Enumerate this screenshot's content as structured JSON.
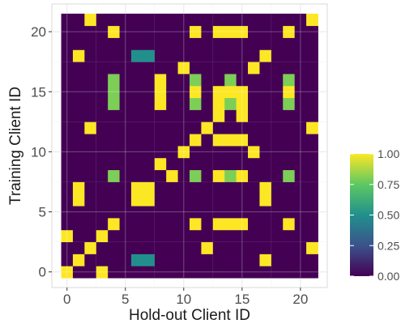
{
  "chart_data": {
    "type": "heatmap",
    "title": "",
    "xlabel": "Hold-out Client ID",
    "ylabel": "Training Client ID",
    "x_range": [
      0,
      21
    ],
    "y_range": [
      0,
      21
    ],
    "xlim": [
      -1.3,
      22.3
    ],
    "ylim": [
      -1.3,
      22.3
    ],
    "x_ticks": [
      0,
      5,
      10,
      15,
      20
    ],
    "y_ticks": [
      0,
      5,
      10,
      15,
      20
    ],
    "x_tick_labels": [
      "0",
      "5",
      "10",
      "15",
      "20"
    ],
    "y_tick_labels": [
      "0",
      "5",
      "10",
      "15",
      "20"
    ],
    "grid": true,
    "colorscale": "viridis",
    "colorbar": {
      "range": [
        0,
        1
      ],
      "ticks": [
        0.0,
        0.25,
        0.5,
        0.75,
        1.0
      ],
      "tick_labels": [
        "0.00",
        "0.25",
        "0.50",
        "0.75",
        "1.00"
      ],
      "placement": "right"
    },
    "default_value": 0,
    "cells": [
      {
        "x": 0,
        "y": 0,
        "value": 1
      },
      {
        "x": 3,
        "y": 0,
        "value": 1
      },
      {
        "x": 1,
        "y": 1,
        "value": 1
      },
      {
        "x": 6,
        "y": 1,
        "value": 0.5
      },
      {
        "x": 7,
        "y": 1,
        "value": 0.5
      },
      {
        "x": 17,
        "y": 1,
        "value": 1
      },
      {
        "x": 2,
        "y": 2,
        "value": 1
      },
      {
        "x": 12,
        "y": 2,
        "value": 1
      },
      {
        "x": 21,
        "y": 2,
        "value": 1
      },
      {
        "x": 0,
        "y": 3,
        "value": 1
      },
      {
        "x": 3,
        "y": 3,
        "value": 1
      },
      {
        "x": 4,
        "y": 4,
        "value": 1
      },
      {
        "x": 11,
        "y": 4,
        "value": 1
      },
      {
        "x": 13,
        "y": 4,
        "value": 1
      },
      {
        "x": 14,
        "y": 4,
        "value": 1
      },
      {
        "x": 15,
        "y": 4,
        "value": 1
      },
      {
        "x": 19,
        "y": 4,
        "value": 1
      },
      {
        "x": 1,
        "y": 6,
        "value": 1
      },
      {
        "x": 6,
        "y": 6,
        "value": 1
      },
      {
        "x": 7,
        "y": 6,
        "value": 1
      },
      {
        "x": 17,
        "y": 6,
        "value": 1
      },
      {
        "x": 1,
        "y": 7,
        "value": 1
      },
      {
        "x": 6,
        "y": 7,
        "value": 1
      },
      {
        "x": 7,
        "y": 7,
        "value": 1
      },
      {
        "x": 17,
        "y": 7,
        "value": 1
      },
      {
        "x": 4,
        "y": 8,
        "value": 0.8
      },
      {
        "x": 9,
        "y": 8,
        "value": 1
      },
      {
        "x": 11,
        "y": 8,
        "value": 0.8
      },
      {
        "x": 13,
        "y": 8,
        "value": 1
      },
      {
        "x": 14,
        "y": 8,
        "value": 0.8
      },
      {
        "x": 15,
        "y": 8,
        "value": 1
      },
      {
        "x": 19,
        "y": 8,
        "value": 0.8
      },
      {
        "x": 8,
        "y": 9,
        "value": 1
      },
      {
        "x": 10,
        "y": 10,
        "value": 1
      },
      {
        "x": 16,
        "y": 10,
        "value": 1
      },
      {
        "x": 11,
        "y": 11,
        "value": 1
      },
      {
        "x": 13,
        "y": 11,
        "value": 1
      },
      {
        "x": 14,
        "y": 11,
        "value": 1
      },
      {
        "x": 15,
        "y": 11,
        "value": 1
      },
      {
        "x": 2,
        "y": 12,
        "value": 1
      },
      {
        "x": 12,
        "y": 12,
        "value": 1
      },
      {
        "x": 21,
        "y": 12,
        "value": 1
      },
      {
        "x": 13,
        "y": 13,
        "value": 1
      },
      {
        "x": 15,
        "y": 13,
        "value": 1
      },
      {
        "x": 4,
        "y": 14,
        "value": 0.8
      },
      {
        "x": 8,
        "y": 14,
        "value": 1
      },
      {
        "x": 11,
        "y": 14,
        "value": 0.8
      },
      {
        "x": 13,
        "y": 14,
        "value": 1
      },
      {
        "x": 14,
        "y": 14,
        "value": 0.8
      },
      {
        "x": 15,
        "y": 14,
        "value": 1
      },
      {
        "x": 19,
        "y": 14,
        "value": 0.8
      },
      {
        "x": 4,
        "y": 15,
        "value": 0.8
      },
      {
        "x": 8,
        "y": 15,
        "value": 1
      },
      {
        "x": 11,
        "y": 15,
        "value": 1
      },
      {
        "x": 13,
        "y": 15,
        "value": 1
      },
      {
        "x": 14,
        "y": 15,
        "value": 1
      },
      {
        "x": 15,
        "y": 15,
        "value": 1
      },
      {
        "x": 19,
        "y": 15,
        "value": 1
      },
      {
        "x": 4,
        "y": 16,
        "value": 0.8
      },
      {
        "x": 8,
        "y": 16,
        "value": 1
      },
      {
        "x": 11,
        "y": 16,
        "value": 0.8
      },
      {
        "x": 14,
        "y": 16,
        "value": 0.8
      },
      {
        "x": 19,
        "y": 16,
        "value": 0.8
      },
      {
        "x": 10,
        "y": 17,
        "value": 1
      },
      {
        "x": 16,
        "y": 17,
        "value": 1
      },
      {
        "x": 1,
        "y": 18,
        "value": 1
      },
      {
        "x": 6,
        "y": 18,
        "value": 0.5
      },
      {
        "x": 7,
        "y": 18,
        "value": 0.5
      },
      {
        "x": 17,
        "y": 18,
        "value": 1
      },
      {
        "x": 4,
        "y": 20,
        "value": 1
      },
      {
        "x": 11,
        "y": 20,
        "value": 1
      },
      {
        "x": 13,
        "y": 20,
        "value": 1
      },
      {
        "x": 14,
        "y": 20,
        "value": 1
      },
      {
        "x": 15,
        "y": 20,
        "value": 1
      },
      {
        "x": 19,
        "y": 20,
        "value": 1
      },
      {
        "x": 2,
        "y": 21,
        "value": 1
      },
      {
        "x": 21,
        "y": 21,
        "value": 1
      }
    ]
  }
}
